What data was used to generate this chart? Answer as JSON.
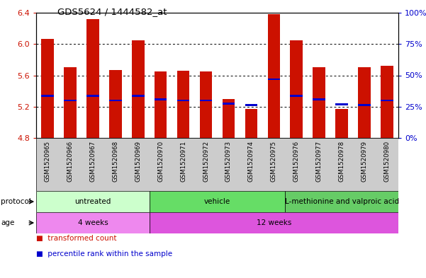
{
  "title": "GDS5624 / 1444582_at",
  "samples": [
    "GSM1520965",
    "GSM1520966",
    "GSM1520967",
    "GSM1520968",
    "GSM1520969",
    "GSM1520970",
    "GSM1520971",
    "GSM1520972",
    "GSM1520973",
    "GSM1520974",
    "GSM1520975",
    "GSM1520976",
    "GSM1520977",
    "GSM1520978",
    "GSM1520979",
    "GSM1520980"
  ],
  "bar_top": [
    6.07,
    5.7,
    6.32,
    5.67,
    6.05,
    5.65,
    5.66,
    5.65,
    5.3,
    5.17,
    6.38,
    6.05,
    5.7,
    5.17,
    5.7,
    5.72
  ],
  "bar_bottom": 4.8,
  "blue_marker": [
    5.34,
    5.28,
    5.34,
    5.28,
    5.34,
    5.29,
    5.28,
    5.28,
    5.24,
    5.22,
    5.55,
    5.34,
    5.29,
    5.23,
    5.22,
    5.28
  ],
  "ylim_left": [
    4.8,
    6.4
  ],
  "ylim_right": [
    0,
    100
  ],
  "yticks_left": [
    4.8,
    5.2,
    5.6,
    6.0,
    6.4
  ],
  "yticks_right": [
    0,
    25,
    50,
    75,
    100
  ],
  "bar_color": "#cc1100",
  "blue_color": "#0000cc",
  "protocol_groups": [
    {
      "label": "untreated",
      "start": 0,
      "end": 5,
      "color": "#ccffcc"
    },
    {
      "label": "vehicle",
      "start": 5,
      "end": 11,
      "color": "#66dd66"
    },
    {
      "label": "L-methionine and valproic acid",
      "start": 11,
      "end": 16,
      "color": "#66cc66"
    }
  ],
  "age_groups": [
    {
      "label": "4 weeks",
      "start": 0,
      "end": 5,
      "color": "#ee88ee"
    },
    {
      "label": "12 weeks",
      "start": 5,
      "end": 16,
      "color": "#dd55dd"
    }
  ],
  "axis_label_color_left": "#cc1100",
  "axis_label_color_right": "#0000cc",
  "bar_width": 0.55,
  "xlim": [
    -0.5,
    15.5
  ],
  "grid_lines": [
    5.2,
    5.6,
    6.0
  ],
  "xtick_bg_color": "#cccccc"
}
